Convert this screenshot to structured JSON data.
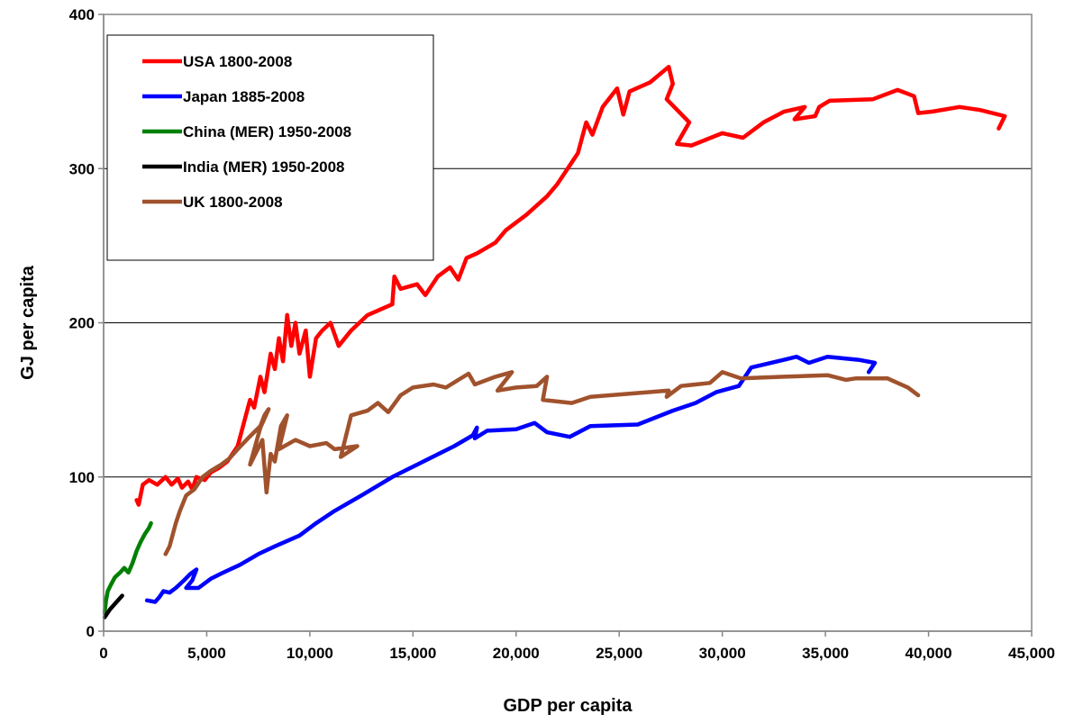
{
  "chart_data": {
    "type": "line",
    "xlabel": "GDP per capita",
    "ylabel": "GJ per capita",
    "xlim": [
      0,
      45000
    ],
    "ylim": [
      0,
      400
    ],
    "x_ticks": [
      0,
      5000,
      10000,
      15000,
      20000,
      25000,
      30000,
      35000,
      40000,
      45000
    ],
    "x_tick_labels": [
      "0",
      "5,000",
      "10,000",
      "15,000",
      "20,000",
      "25,000",
      "30,000",
      "35,000",
      "40,000",
      "45,000"
    ],
    "y_ticks": [
      0,
      100,
      200,
      300,
      400
    ],
    "y_tick_labels": [
      "0",
      "100",
      "200",
      "300",
      "400"
    ],
    "grid": "horizontal major gridlines",
    "legend_position": "top-left",
    "series": [
      {
        "name": "USA 1800-2008",
        "color": "#ff0000",
        "points": [
          [
            1600,
            85
          ],
          [
            1700,
            82
          ],
          [
            1900,
            95
          ],
          [
            2200,
            98
          ],
          [
            2600,
            95
          ],
          [
            3000,
            100
          ],
          [
            3300,
            95
          ],
          [
            3600,
            99
          ],
          [
            3800,
            93
          ],
          [
            4100,
            97
          ],
          [
            4300,
            92
          ],
          [
            4500,
            100
          ],
          [
            4900,
            98
          ],
          [
            5200,
            103
          ],
          [
            5600,
            106
          ],
          [
            6000,
            110
          ],
          [
            6500,
            120
          ],
          [
            6900,
            140
          ],
          [
            7100,
            150
          ],
          [
            7300,
            145
          ],
          [
            7600,
            165
          ],
          [
            7800,
            155
          ],
          [
            8100,
            180
          ],
          [
            8300,
            170
          ],
          [
            8500,
            190
          ],
          [
            8700,
            175
          ],
          [
            8900,
            205
          ],
          [
            9100,
            185
          ],
          [
            9300,
            200
          ],
          [
            9500,
            180
          ],
          [
            9800,
            195
          ],
          [
            10000,
            165
          ],
          [
            10300,
            190
          ],
          [
            10600,
            195
          ],
          [
            11000,
            200
          ],
          [
            11400,
            185
          ],
          [
            12000,
            195
          ],
          [
            12800,
            205
          ],
          [
            14000,
            212
          ],
          [
            14100,
            230
          ],
          [
            14400,
            222
          ],
          [
            15200,
            225
          ],
          [
            15600,
            218
          ],
          [
            16200,
            230
          ],
          [
            16800,
            236
          ],
          [
            17200,
            228
          ],
          [
            17600,
            242
          ],
          [
            18100,
            245
          ],
          [
            19000,
            252
          ],
          [
            19500,
            260
          ],
          [
            20500,
            270
          ],
          [
            21500,
            282
          ],
          [
            22000,
            290
          ],
          [
            22500,
            300
          ],
          [
            23000,
            310
          ],
          [
            23400,
            330
          ],
          [
            23700,
            322
          ],
          [
            24200,
            340
          ],
          [
            24900,
            352
          ],
          [
            25200,
            335
          ],
          [
            25500,
            350
          ],
          [
            26500,
            356
          ],
          [
            27400,
            366
          ],
          [
            27600,
            355
          ],
          [
            27300,
            345
          ],
          [
            28400,
            330
          ],
          [
            27800,
            316
          ],
          [
            28500,
            315
          ],
          [
            30000,
            323
          ],
          [
            31000,
            320
          ],
          [
            32000,
            330
          ],
          [
            33000,
            337
          ],
          [
            34000,
            340
          ],
          [
            33500,
            332
          ],
          [
            34500,
            334
          ],
          [
            34700,
            340
          ],
          [
            35200,
            344
          ],
          [
            37300,
            345
          ],
          [
            38500,
            351
          ],
          [
            39300,
            347
          ],
          [
            39500,
            336
          ],
          [
            40200,
            337
          ],
          [
            41500,
            340
          ],
          [
            42500,
            338
          ],
          [
            43700,
            334
          ],
          [
            43400,
            326
          ]
        ]
      },
      {
        "name": "Japan 1885-2008",
        "color": "#0000ff",
        "points": [
          [
            2100,
            20
          ],
          [
            2500,
            19
          ],
          [
            2700,
            22
          ],
          [
            2900,
            26
          ],
          [
            3200,
            25
          ],
          [
            3500,
            28
          ],
          [
            3900,
            33
          ],
          [
            4200,
            37
          ],
          [
            4500,
            40
          ],
          [
            4300,
            33
          ],
          [
            4000,
            28
          ],
          [
            4600,
            28
          ],
          [
            5200,
            34
          ],
          [
            5800,
            38
          ],
          [
            6600,
            43
          ],
          [
            7500,
            50
          ],
          [
            8300,
            55
          ],
          [
            9500,
            62
          ],
          [
            10300,
            70
          ],
          [
            11200,
            78
          ],
          [
            12500,
            88
          ],
          [
            14000,
            100
          ],
          [
            15500,
            110
          ],
          [
            17000,
            120
          ],
          [
            17900,
            127
          ],
          [
            18100,
            132
          ],
          [
            18000,
            125
          ],
          [
            18600,
            130
          ],
          [
            20000,
            131
          ],
          [
            20900,
            135
          ],
          [
            21500,
            129
          ],
          [
            22600,
            126
          ],
          [
            23600,
            133
          ],
          [
            25900,
            134
          ],
          [
            27600,
            143
          ],
          [
            28700,
            148
          ],
          [
            29700,
            155
          ],
          [
            30800,
            159
          ],
          [
            31400,
            171
          ],
          [
            33000,
            176
          ],
          [
            33600,
            178
          ],
          [
            34200,
            174
          ],
          [
            35100,
            178
          ],
          [
            36600,
            176
          ],
          [
            37400,
            174
          ],
          [
            37100,
            168
          ]
        ]
      },
      {
        "name": "China (MER) 1950-2008",
        "color": "#008000",
        "points": [
          [
            50,
            12
          ],
          [
            120,
            20
          ],
          [
            200,
            26
          ],
          [
            350,
            30
          ],
          [
            550,
            35
          ],
          [
            800,
            38
          ],
          [
            1000,
            41
          ],
          [
            1200,
            38
          ],
          [
            1400,
            44
          ],
          [
            1600,
            52
          ],
          [
            1800,
            58
          ],
          [
            2000,
            63
          ],
          [
            2200,
            67
          ],
          [
            2300,
            70
          ]
        ]
      },
      {
        "name": "India (MER) 1950-2008",
        "color": "#000000",
        "points": [
          [
            50,
            9
          ],
          [
            150,
            11
          ],
          [
            300,
            14
          ],
          [
            500,
            17
          ],
          [
            700,
            20
          ],
          [
            900,
            23
          ]
        ]
      },
      {
        "name": "UK 1800-2008",
        "color": "#a0522d",
        "points": [
          [
            3000,
            50
          ],
          [
            3200,
            55
          ],
          [
            3500,
            70
          ],
          [
            3700,
            78
          ],
          [
            4000,
            88
          ],
          [
            4400,
            92
          ],
          [
            4800,
            100
          ],
          [
            5200,
            104
          ],
          [
            5700,
            108
          ],
          [
            6100,
            112
          ],
          [
            6500,
            118
          ],
          [
            7000,
            125
          ],
          [
            7600,
            133
          ],
          [
            7800,
            140
          ],
          [
            8000,
            144
          ],
          [
            7600,
            132
          ],
          [
            7100,
            108
          ],
          [
            7700,
            124
          ],
          [
            7900,
            90
          ],
          [
            8100,
            115
          ],
          [
            8300,
            110
          ],
          [
            8600,
            133
          ],
          [
            8900,
            140
          ],
          [
            8500,
            118
          ],
          [
            9300,
            124
          ],
          [
            10000,
            120
          ],
          [
            10800,
            122
          ],
          [
            11200,
            118
          ],
          [
            12300,
            120
          ],
          [
            11500,
            113
          ],
          [
            12000,
            140
          ],
          [
            12800,
            143
          ],
          [
            13300,
            148
          ],
          [
            13800,
            142
          ],
          [
            14400,
            153
          ],
          [
            15000,
            158
          ],
          [
            16000,
            160
          ],
          [
            16600,
            158
          ],
          [
            17200,
            163
          ],
          [
            17700,
            167
          ],
          [
            18000,
            160
          ],
          [
            19000,
            165
          ],
          [
            19800,
            168
          ],
          [
            19100,
            156
          ],
          [
            20000,
            158
          ],
          [
            21000,
            159
          ],
          [
            21500,
            165
          ],
          [
            21300,
            150
          ],
          [
            22700,
            148
          ],
          [
            23600,
            152
          ],
          [
            25500,
            154
          ],
          [
            27400,
            156
          ],
          [
            27300,
            152
          ],
          [
            28000,
            159
          ],
          [
            29400,
            161
          ],
          [
            30000,
            168
          ],
          [
            30900,
            164
          ],
          [
            33000,
            165
          ],
          [
            35100,
            166
          ],
          [
            36000,
            163
          ],
          [
            36500,
            164
          ],
          [
            38000,
            164
          ],
          [
            39000,
            158
          ],
          [
            39500,
            153
          ]
        ]
      }
    ]
  }
}
